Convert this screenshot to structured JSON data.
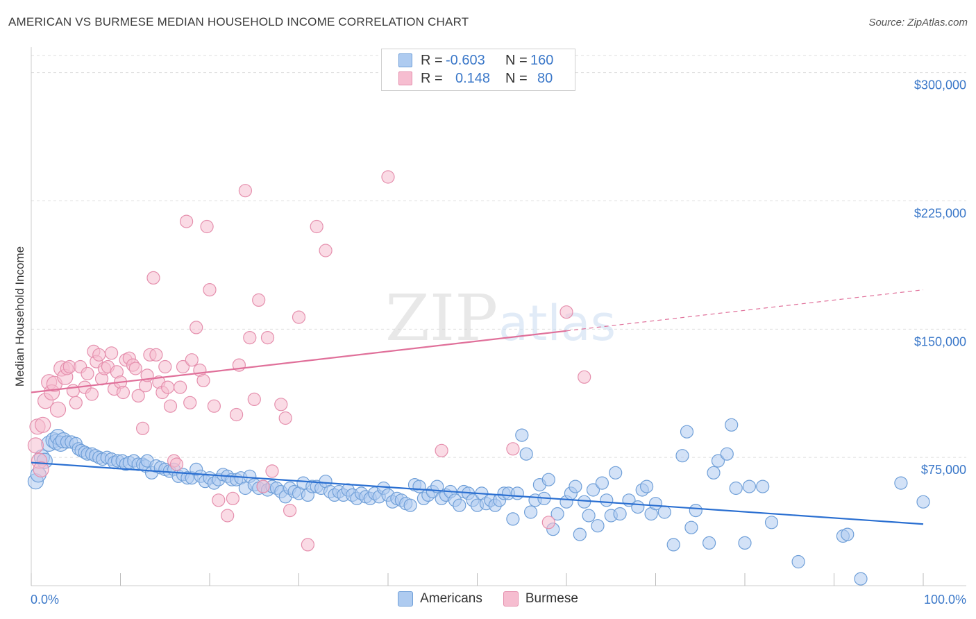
{
  "header": {
    "title": "AMERICAN VS BURMESE MEDIAN HOUSEHOLD INCOME CORRELATION CHART",
    "source": "Source: ZipAtlas.com"
  },
  "legend": {
    "rows": [
      {
        "r_label": "R =",
        "r_value": "-0.603",
        "n_label": "N =",
        "n_value": "160"
      },
      {
        "r_label": "R =",
        "r_value": "0.148",
        "n_label": "N =",
        "n_value": "80"
      }
    ]
  },
  "bottom_legend": {
    "americans": "Americans",
    "burmese": "Burmese"
  },
  "watermark": {
    "zip": "ZIP",
    "atlas": "atlas"
  },
  "colors": {
    "americans_fill": "#aecbf0",
    "americans_stroke": "#6f9fd8",
    "americans_line": "#2a6fd1",
    "burmese_fill": "#f6bdd0",
    "burmese_stroke": "#e58fad",
    "burmese_line": "#e0709a",
    "tick_label": "#3b78c9",
    "grid": "#dddddd"
  },
  "chart_data": {
    "type": "scatter",
    "title": "AMERICAN VS BURMESE MEDIAN HOUSEHOLD INCOME CORRELATION CHART",
    "xlabel": "",
    "ylabel": "Median Household Income",
    "x_tick_labels": [
      "0.0%",
      "100.0%"
    ],
    "y_tick_labels": [
      "$75,000",
      "$150,000",
      "$225,000",
      "$300,000"
    ],
    "y_ticks": [
      75000,
      150000,
      225000,
      300000
    ],
    "xlim": [
      0,
      100
    ],
    "ylim": [
      0,
      310000
    ],
    "grid": true,
    "legend_position": "top-center",
    "series": [
      {
        "name": "Americans",
        "r": -0.603,
        "n": 160,
        "trend": {
          "x": [
            0,
            100
          ],
          "y": [
            72000,
            36000
          ],
          "dashed_from": null
        },
        "points": [
          [
            0.5,
            61000
          ],
          [
            0.8,
            65000
          ],
          [
            1.2,
            75000
          ],
          [
            1.5,
            73000
          ],
          [
            2,
            83000
          ],
          [
            2.5,
            85000
          ],
          [
            2.8,
            84000
          ],
          [
            3,
            87000
          ],
          [
            3.3,
            83000
          ],
          [
            3.6,
            85000
          ],
          [
            4,
            84000
          ],
          [
            4.5,
            84000
          ],
          [
            5,
            83000
          ],
          [
            5.3,
            80000
          ],
          [
            5.6,
            79000
          ],
          [
            6,
            78000
          ],
          [
            6.3,
            77000
          ],
          [
            6.8,
            77000
          ],
          [
            7.2,
            76000
          ],
          [
            7.6,
            75000
          ],
          [
            8,
            74000
          ],
          [
            8.5,
            75000
          ],
          [
            9,
            74000
          ],
          [
            9.3,
            72000
          ],
          [
            9.7,
            73000
          ],
          [
            10.2,
            73000
          ],
          [
            10.6,
            71000
          ],
          [
            11,
            72000
          ],
          [
            11.5,
            73000
          ],
          [
            12,
            71000
          ],
          [
            12.5,
            71000
          ],
          [
            12.8,
            70000
          ],
          [
            13,
            73000
          ],
          [
            13.5,
            66000
          ],
          [
            14,
            70000
          ],
          [
            14.5,
            69000
          ],
          [
            15,
            68000
          ],
          [
            15.5,
            67000
          ],
          [
            16,
            68000
          ],
          [
            16.5,
            64000
          ],
          [
            17,
            65000
          ],
          [
            17.5,
            63000
          ],
          [
            18,
            63000
          ],
          [
            18.5,
            68000
          ],
          [
            19,
            64000
          ],
          [
            19.5,
            61000
          ],
          [
            20,
            63000
          ],
          [
            20.5,
            60000
          ],
          [
            21,
            62000
          ],
          [
            21.5,
            65000
          ],
          [
            22,
            64000
          ],
          [
            22.5,
            62000
          ],
          [
            23,
            62000
          ],
          [
            23.5,
            63000
          ],
          [
            24,
            57000
          ],
          [
            24.5,
            64000
          ],
          [
            25,
            59000
          ],
          [
            25.5,
            57000
          ],
          [
            26,
            58000
          ],
          [
            26.5,
            56000
          ],
          [
            27,
            58000
          ],
          [
            27.5,
            57000
          ],
          [
            28,
            55000
          ],
          [
            28.5,
            52000
          ],
          [
            29,
            57000
          ],
          [
            29.5,
            55000
          ],
          [
            30,
            54000
          ],
          [
            30.5,
            60000
          ],
          [
            31,
            53000
          ],
          [
            31.5,
            58000
          ],
          [
            32,
            58000
          ],
          [
            32.5,
            57000
          ],
          [
            33,
            61000
          ],
          [
            33.5,
            55000
          ],
          [
            34,
            53000
          ],
          [
            34.5,
            55000
          ],
          [
            35,
            53000
          ],
          [
            35.5,
            56000
          ],
          [
            36,
            53000
          ],
          [
            36.5,
            51000
          ],
          [
            37,
            54000
          ],
          [
            37.5,
            52000
          ],
          [
            38,
            51000
          ],
          [
            38.5,
            54000
          ],
          [
            39,
            52000
          ],
          [
            39.5,
            57000
          ],
          [
            40,
            53000
          ],
          [
            40.5,
            49000
          ],
          [
            41,
            51000
          ],
          [
            41.5,
            50000
          ],
          [
            42,
            48000
          ],
          [
            42.5,
            47000
          ],
          [
            43,
            59000
          ],
          [
            43.5,
            58000
          ],
          [
            44,
            51000
          ],
          [
            44.5,
            53000
          ],
          [
            45,
            55000
          ],
          [
            45.5,
            58000
          ],
          [
            46,
            51000
          ],
          [
            46.5,
            53000
          ],
          [
            47,
            55000
          ],
          [
            47.5,
            50000
          ],
          [
            48,
            47000
          ],
          [
            48.5,
            55000
          ],
          [
            49,
            54000
          ],
          [
            49.5,
            50000
          ],
          [
            50,
            47000
          ],
          [
            50.5,
            54000
          ],
          [
            51,
            48000
          ],
          [
            51.5,
            50000
          ],
          [
            52,
            47000
          ],
          [
            52.5,
            50000
          ],
          [
            53,
            54000
          ],
          [
            53.5,
            54000
          ],
          [
            54,
            39000
          ],
          [
            54.5,
            54000
          ],
          [
            55,
            88000
          ],
          [
            55.5,
            77000
          ],
          [
            56,
            43000
          ],
          [
            56.5,
            50000
          ],
          [
            57,
            59000
          ],
          [
            57.5,
            51000
          ],
          [
            58,
            62000
          ],
          [
            58.5,
            33000
          ],
          [
            59,
            42000
          ],
          [
            60,
            49000
          ],
          [
            60.5,
            54000
          ],
          [
            61,
            58000
          ],
          [
            61.5,
            30000
          ],
          [
            62,
            49000
          ],
          [
            62.5,
            41000
          ],
          [
            63,
            56000
          ],
          [
            63.5,
            35000
          ],
          [
            64,
            60000
          ],
          [
            64.5,
            50000
          ],
          [
            65,
            41000
          ],
          [
            65.5,
            66000
          ],
          [
            66,
            42000
          ],
          [
            67,
            50000
          ],
          [
            68,
            46000
          ],
          [
            68.5,
            56000
          ],
          [
            69,
            58000
          ],
          [
            69.5,
            42000
          ],
          [
            70,
            48000
          ],
          [
            71,
            43000
          ],
          [
            72,
            24000
          ],
          [
            73,
            76000
          ],
          [
            73.5,
            90000
          ],
          [
            74,
            34000
          ],
          [
            74.5,
            44000
          ],
          [
            76,
            25000
          ],
          [
            76.5,
            66000
          ],
          [
            77,
            73000
          ],
          [
            78,
            77000
          ],
          [
            78.5,
            94000
          ],
          [
            79,
            57000
          ],
          [
            80,
            25000
          ],
          [
            80.5,
            58000
          ],
          [
            82,
            58000
          ],
          [
            83,
            37000
          ],
          [
            86,
            14000
          ],
          [
            91,
            29000
          ],
          [
            91.5,
            30000
          ],
          [
            93,
            4000
          ],
          [
            97.5,
            60000
          ],
          [
            100,
            49000
          ]
        ]
      },
      {
        "name": "Burmese",
        "r": 0.148,
        "n": 80,
        "trend": {
          "x": [
            0,
            60,
            100
          ],
          "y": [
            113000,
            149000,
            173000
          ],
          "dashed_from": 60
        },
        "points": [
          [
            0.5,
            82000
          ],
          [
            0.7,
            93000
          ],
          [
            0.9,
            73000
          ],
          [
            1.1,
            68000
          ],
          [
            1.3,
            94000
          ],
          [
            1.6,
            108000
          ],
          [
            2,
            119000
          ],
          [
            2.3,
            113000
          ],
          [
            2.6,
            118000
          ],
          [
            3,
            103000
          ],
          [
            3.4,
            127000
          ],
          [
            3.8,
            122000
          ],
          [
            4,
            127000
          ],
          [
            4.3,
            128000
          ],
          [
            4.7,
            114000
          ],
          [
            5,
            107000
          ],
          [
            5.5,
            128000
          ],
          [
            6,
            116000
          ],
          [
            6.3,
            124000
          ],
          [
            6.8,
            112000
          ],
          [
            7,
            137000
          ],
          [
            7.3,
            131000
          ],
          [
            7.6,
            135000
          ],
          [
            7.9,
            121000
          ],
          [
            8.2,
            127000
          ],
          [
            8.6,
            128000
          ],
          [
            9,
            136000
          ],
          [
            9.3,
            115000
          ],
          [
            9.6,
            125000
          ],
          [
            10,
            119000
          ],
          [
            10.3,
            113000
          ],
          [
            10.6,
            132000
          ],
          [
            11,
            133000
          ],
          [
            11.4,
            129000
          ],
          [
            11.7,
            127000
          ],
          [
            12,
            111000
          ],
          [
            12.5,
            92000
          ],
          [
            12.8,
            117000
          ],
          [
            13,
            123000
          ],
          [
            13.3,
            135000
          ],
          [
            13.7,
            180000
          ],
          [
            14,
            135000
          ],
          [
            14.3,
            119000
          ],
          [
            14.7,
            113000
          ],
          [
            15,
            128000
          ],
          [
            15.3,
            116000
          ],
          [
            15.6,
            105000
          ],
          [
            16,
            73000
          ],
          [
            16.3,
            71000
          ],
          [
            16.7,
            116000
          ],
          [
            17,
            128000
          ],
          [
            17.4,
            213000
          ],
          [
            17.8,
            107000
          ],
          [
            18,
            132000
          ],
          [
            18.5,
            151000
          ],
          [
            18.9,
            126000
          ],
          [
            19.3,
            120000
          ],
          [
            19.7,
            210000
          ],
          [
            20,
            173000
          ],
          [
            20.5,
            105000
          ],
          [
            21,
            50000
          ],
          [
            22,
            41000
          ],
          [
            22.6,
            51000
          ],
          [
            23,
            100000
          ],
          [
            23.3,
            129000
          ],
          [
            24,
            231000
          ],
          [
            24.5,
            145000
          ],
          [
            25,
            109000
          ],
          [
            25.5,
            167000
          ],
          [
            26,
            58000
          ],
          [
            26.5,
            145000
          ],
          [
            27,
            67000
          ],
          [
            28,
            106000
          ],
          [
            28.5,
            98000
          ],
          [
            29,
            44000
          ],
          [
            30,
            157000
          ],
          [
            31,
            24000
          ],
          [
            32,
            210000
          ],
          [
            33,
            196000
          ],
          [
            40,
            239000
          ],
          [
            46,
            79000
          ],
          [
            54,
            80000
          ],
          [
            58,
            37000
          ],
          [
            60,
            160000
          ],
          [
            62,
            122000
          ]
        ]
      }
    ]
  }
}
